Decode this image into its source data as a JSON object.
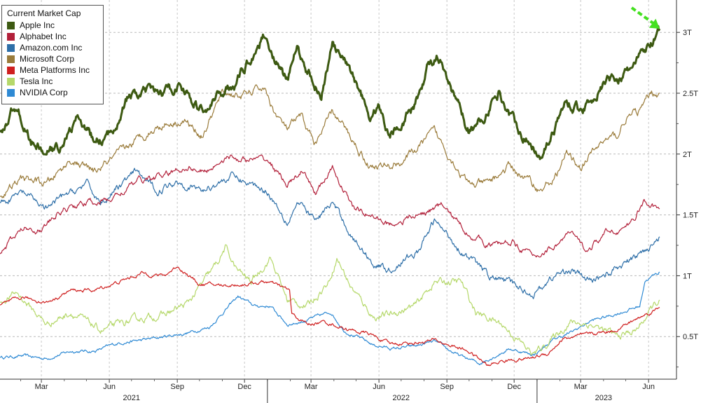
{
  "chart_data": {
    "type": "line",
    "title": "",
    "xlabel": "",
    "ylabel": "",
    "y_unit": "USD trillions",
    "x_range": [
      "2021-01-04",
      "2023-06-16"
    ],
    "ylim": [
      0.15,
      3.22
    ],
    "y_axis_side": "right",
    "y_ticks": [
      {
        "value": 0.5,
        "label": "0.5T"
      },
      {
        "value": 1.0,
        "label": "1T"
      },
      {
        "value": 1.5,
        "label": "1.5T"
      },
      {
        "value": 2.0,
        "label": "2T"
      },
      {
        "value": 2.5,
        "label": "2.5T"
      },
      {
        "value": 3.0,
        "label": "3T"
      }
    ],
    "month_ticks": [
      {
        "date": "2021-03-01",
        "label": "Mar"
      },
      {
        "date": "2021-06-01",
        "label": "Jun"
      },
      {
        "date": "2021-09-01",
        "label": "Sep"
      },
      {
        "date": "2021-12-01",
        "label": "Dec"
      },
      {
        "date": "2022-03-01",
        "label": "Mar"
      },
      {
        "date": "2022-06-01",
        "label": "Jun"
      },
      {
        "date": "2022-09-01",
        "label": "Sep"
      },
      {
        "date": "2022-12-01",
        "label": "Dec"
      },
      {
        "date": "2023-03-01",
        "label": "Mar"
      },
      {
        "date": "2023-06-01",
        "label": "Jun"
      }
    ],
    "year_ticks": [
      {
        "date": "2021-07-01",
        "label": "2021"
      },
      {
        "date": "2022-07-01",
        "label": "2022"
      },
      {
        "date": "2023-04-01",
        "label": "2023"
      }
    ],
    "year_dividers": [
      "2022-01-01",
      "2023-01-01"
    ],
    "grid": "dashed horizontal at y ticks, dashed vertical at quarter starts",
    "legend": {
      "title": "Current Market Cap",
      "position": "top-left"
    },
    "annotation": {
      "type": "arrow",
      "color": "#44e020",
      "points_to": {
        "series": "Apple Inc",
        "date": "2023-06-16",
        "value": 3.03
      }
    },
    "series": [
      {
        "name": "Apple Inc",
        "color": "#3d5a12",
        "points": [
          [
            "2021-01-04",
            2.18
          ],
          [
            "2021-01-26",
            2.4
          ],
          [
            "2021-02-15",
            2.1
          ],
          [
            "2021-03-08",
            2.0
          ],
          [
            "2021-03-25",
            2.05
          ],
          [
            "2021-04-20",
            2.3
          ],
          [
            "2021-05-12",
            2.1
          ],
          [
            "2021-06-01",
            2.15
          ],
          [
            "2021-06-25",
            2.45
          ],
          [
            "2021-07-20",
            2.5
          ],
          [
            "2021-08-15",
            2.5
          ],
          [
            "2021-09-05",
            2.58
          ],
          [
            "2021-09-25",
            2.4
          ],
          [
            "2021-10-10",
            2.35
          ],
          [
            "2021-10-30",
            2.5
          ],
          [
            "2021-11-20",
            2.6
          ],
          [
            "2021-12-05",
            2.75
          ],
          [
            "2021-12-28",
            2.98
          ],
          [
            "2022-01-10",
            2.8
          ],
          [
            "2022-01-27",
            2.6
          ],
          [
            "2022-02-10",
            2.85
          ],
          [
            "2022-02-28",
            2.65
          ],
          [
            "2022-03-15",
            2.5
          ],
          [
            "2022-03-30",
            2.9
          ],
          [
            "2022-04-15",
            2.75
          ],
          [
            "2022-05-05",
            2.55
          ],
          [
            "2022-05-20",
            2.3
          ],
          [
            "2022-06-01",
            2.4
          ],
          [
            "2022-06-15",
            2.15
          ],
          [
            "2022-07-05",
            2.3
          ],
          [
            "2022-07-20",
            2.4
          ],
          [
            "2022-08-05",
            2.7
          ],
          [
            "2022-08-18",
            2.8
          ],
          [
            "2022-09-05",
            2.55
          ],
          [
            "2022-09-30",
            2.2
          ],
          [
            "2022-10-20",
            2.3
          ],
          [
            "2022-11-10",
            2.5
          ],
          [
            "2022-11-28",
            2.3
          ],
          [
            "2022-12-20",
            2.1
          ],
          [
            "2023-01-05",
            2.0
          ],
          [
            "2023-01-25",
            2.2
          ],
          [
            "2023-02-10",
            2.45
          ],
          [
            "2023-03-01",
            2.35
          ],
          [
            "2023-03-15",
            2.45
          ],
          [
            "2023-04-05",
            2.6
          ],
          [
            "2023-05-01",
            2.65
          ],
          [
            "2023-05-20",
            2.8
          ],
          [
            "2023-06-05",
            2.9
          ],
          [
            "2023-06-16",
            3.03
          ]
        ]
      },
      {
        "name": "Alphabet Inc",
        "color": "#b2203a",
        "points": [
          [
            "2021-01-04",
            1.18
          ],
          [
            "2021-02-05",
            1.4
          ],
          [
            "2021-03-01",
            1.38
          ],
          [
            "2021-04-01",
            1.55
          ],
          [
            "2021-04-30",
            1.6
          ],
          [
            "2021-06-01",
            1.62
          ],
          [
            "2021-07-10",
            1.78
          ],
          [
            "2021-08-15",
            1.82
          ],
          [
            "2021-09-15",
            1.9
          ],
          [
            "2021-10-10",
            1.85
          ],
          [
            "2021-11-05",
            1.98
          ],
          [
            "2021-12-01",
            1.95
          ],
          [
            "2022-01-01",
            1.95
          ],
          [
            "2022-01-28",
            1.75
          ],
          [
            "2022-02-15",
            1.85
          ],
          [
            "2022-03-08",
            1.68
          ],
          [
            "2022-03-30",
            1.88
          ],
          [
            "2022-04-28",
            1.55
          ],
          [
            "2022-05-20",
            1.5
          ],
          [
            "2022-06-15",
            1.42
          ],
          [
            "2022-07-25",
            1.5
          ],
          [
            "2022-08-25",
            1.58
          ],
          [
            "2022-09-30",
            1.35
          ],
          [
            "2022-10-30",
            1.25
          ],
          [
            "2022-11-30",
            1.28
          ],
          [
            "2022-12-28",
            1.15
          ],
          [
            "2023-01-25",
            1.25
          ],
          [
            "2023-02-15",
            1.35
          ],
          [
            "2023-03-10",
            1.2
          ],
          [
            "2023-04-05",
            1.35
          ],
          [
            "2023-05-05",
            1.4
          ],
          [
            "2023-05-25",
            1.6
          ],
          [
            "2023-06-16",
            1.55
          ]
        ]
      },
      {
        "name": "Amazon.com Inc",
        "color": "#2e6fa8",
        "points": [
          [
            "2021-01-04",
            1.6
          ],
          [
            "2021-02-05",
            1.68
          ],
          [
            "2021-03-08",
            1.55
          ],
          [
            "2021-04-01",
            1.65
          ],
          [
            "2021-05-01",
            1.75
          ],
          [
            "2021-05-20",
            1.6
          ],
          [
            "2021-07-07",
            1.85
          ],
          [
            "2021-08-05",
            1.7
          ],
          [
            "2021-09-01",
            1.78
          ],
          [
            "2021-10-05",
            1.7
          ],
          [
            "2021-11-15",
            1.82
          ],
          [
            "2021-12-10",
            1.75
          ],
          [
            "2022-01-01",
            1.7
          ],
          [
            "2022-01-28",
            1.45
          ],
          [
            "2022-02-10",
            1.6
          ],
          [
            "2022-03-08",
            1.45
          ],
          [
            "2022-03-30",
            1.6
          ],
          [
            "2022-04-28",
            1.3
          ],
          [
            "2022-05-25",
            1.1
          ],
          [
            "2022-06-15",
            1.05
          ],
          [
            "2022-07-25",
            1.2
          ],
          [
            "2022-08-15",
            1.45
          ],
          [
            "2022-09-30",
            1.15
          ],
          [
            "2022-10-28",
            1.0
          ],
          [
            "2022-11-20",
            0.95
          ],
          [
            "2022-12-28",
            0.85
          ],
          [
            "2023-01-25",
            1.0
          ],
          [
            "2023-02-15",
            1.05
          ],
          [
            "2023-03-15",
            0.95
          ],
          [
            "2023-04-15",
            1.05
          ],
          [
            "2023-05-15",
            1.15
          ],
          [
            "2023-06-16",
            1.32
          ]
        ]
      },
      {
        "name": "Microsoft Corp",
        "color": "#9a7b3a",
        "points": [
          [
            "2021-01-04",
            1.65
          ],
          [
            "2021-02-05",
            1.8
          ],
          [
            "2021-03-08",
            1.75
          ],
          [
            "2021-04-10",
            1.95
          ],
          [
            "2021-05-12",
            1.85
          ],
          [
            "2021-06-15",
            2.0
          ],
          [
            "2021-07-15",
            2.15
          ],
          [
            "2021-08-15",
            2.25
          ],
          [
            "2021-09-10",
            2.28
          ],
          [
            "2021-10-05",
            2.15
          ],
          [
            "2021-11-01",
            2.5
          ],
          [
            "2021-12-01",
            2.48
          ],
          [
            "2021-12-27",
            2.55
          ],
          [
            "2022-01-10",
            2.35
          ],
          [
            "2022-01-27",
            2.2
          ],
          [
            "2022-02-15",
            2.3
          ],
          [
            "2022-03-08",
            2.08
          ],
          [
            "2022-03-30",
            2.35
          ],
          [
            "2022-04-28",
            2.1
          ],
          [
            "2022-05-20",
            1.9
          ],
          [
            "2022-06-15",
            1.9
          ],
          [
            "2022-07-05",
            1.95
          ],
          [
            "2022-08-15",
            2.18
          ],
          [
            "2022-09-30",
            1.75
          ],
          [
            "2022-10-25",
            1.75
          ],
          [
            "2022-11-25",
            1.9
          ],
          [
            "2022-12-28",
            1.75
          ],
          [
            "2023-01-05",
            1.7
          ],
          [
            "2023-01-25",
            1.8
          ],
          [
            "2023-02-10",
            2.0
          ],
          [
            "2023-03-01",
            1.9
          ],
          [
            "2023-03-30",
            2.1
          ],
          [
            "2023-04-20",
            2.15
          ],
          [
            "2023-05-01",
            2.3
          ],
          [
            "2023-05-20",
            2.35
          ],
          [
            "2023-06-05",
            2.5
          ],
          [
            "2023-06-16",
            2.5
          ]
        ]
      },
      {
        "name": "Meta Platforms Inc",
        "color": "#cf1f1f",
        "points": [
          [
            "2021-01-04",
            0.76
          ],
          [
            "2021-02-05",
            0.82
          ],
          [
            "2021-03-08",
            0.78
          ],
          [
            "2021-04-10",
            0.88
          ],
          [
            "2021-05-12",
            0.88
          ],
          [
            "2021-06-15",
            0.95
          ],
          [
            "2021-07-15",
            1.02
          ],
          [
            "2021-08-15",
            1.0
          ],
          [
            "2021-09-01",
            1.08
          ],
          [
            "2021-10-01",
            0.93
          ],
          [
            "2021-11-01",
            0.92
          ],
          [
            "2021-12-01",
            0.93
          ],
          [
            "2022-01-01",
            0.95
          ],
          [
            "2022-01-31",
            0.88
          ],
          [
            "2022-02-03",
            0.68
          ],
          [
            "2022-02-25",
            0.6
          ],
          [
            "2022-03-20",
            0.62
          ],
          [
            "2022-04-25",
            0.55
          ],
          [
            "2022-05-20",
            0.52
          ],
          [
            "2022-06-15",
            0.44
          ],
          [
            "2022-07-20",
            0.45
          ],
          [
            "2022-08-15",
            0.47
          ],
          [
            "2022-09-30",
            0.38
          ],
          [
            "2022-10-27",
            0.26
          ],
          [
            "2022-11-15",
            0.3
          ],
          [
            "2022-12-20",
            0.32
          ],
          [
            "2023-01-15",
            0.36
          ],
          [
            "2023-02-05",
            0.48
          ],
          [
            "2023-03-15",
            0.52
          ],
          [
            "2023-04-15",
            0.55
          ],
          [
            "2023-05-15",
            0.64
          ],
          [
            "2023-06-16",
            0.74
          ]
        ]
      },
      {
        "name": "Tesla Inc",
        "color": "#b5d86a",
        "points": [
          [
            "2021-01-04",
            0.78
          ],
          [
            "2021-01-27",
            0.86
          ],
          [
            "2021-03-08",
            0.6
          ],
          [
            "2021-04-10",
            0.7
          ],
          [
            "2021-05-20",
            0.55
          ],
          [
            "2021-06-15",
            0.6
          ],
          [
            "2021-07-15",
            0.65
          ],
          [
            "2021-08-15",
            0.68
          ],
          [
            "2021-09-15",
            0.77
          ],
          [
            "2021-10-25",
            1.1
          ],
          [
            "2021-11-05",
            1.23
          ],
          [
            "2021-11-20",
            1.05
          ],
          [
            "2021-12-10",
            0.95
          ],
          [
            "2022-01-05",
            1.15
          ],
          [
            "2022-01-28",
            0.8
          ],
          [
            "2022-02-24",
            0.75
          ],
          [
            "2022-03-25",
            0.95
          ],
          [
            "2022-04-05",
            1.15
          ],
          [
            "2022-04-25",
            0.9
          ],
          [
            "2022-05-25",
            0.66
          ],
          [
            "2022-06-15",
            0.68
          ],
          [
            "2022-07-20",
            0.75
          ],
          [
            "2022-08-15",
            0.95
          ],
          [
            "2022-09-20",
            0.95
          ],
          [
            "2022-10-10",
            0.7
          ],
          [
            "2022-11-15",
            0.6
          ],
          [
            "2022-12-27",
            0.35
          ],
          [
            "2023-01-25",
            0.5
          ],
          [
            "2023-02-15",
            0.62
          ],
          [
            "2023-03-15",
            0.6
          ],
          [
            "2023-04-20",
            0.5
          ],
          [
            "2023-05-15",
            0.55
          ],
          [
            "2023-06-08",
            0.75
          ],
          [
            "2023-06-16",
            0.8
          ]
        ]
      },
      {
        "name": "NVIDIA Corp",
        "color": "#2f8ad4",
        "points": [
          [
            "2021-01-04",
            0.33
          ],
          [
            "2021-02-05",
            0.34
          ],
          [
            "2021-03-08",
            0.32
          ],
          [
            "2021-04-10",
            0.38
          ],
          [
            "2021-05-12",
            0.38
          ],
          [
            "2021-06-15",
            0.45
          ],
          [
            "2021-07-15",
            0.47
          ],
          [
            "2021-08-15",
            0.5
          ],
          [
            "2021-09-15",
            0.53
          ],
          [
            "2021-10-15",
            0.58
          ],
          [
            "2021-11-22",
            0.83
          ],
          [
            "2021-12-15",
            0.75
          ],
          [
            "2022-01-05",
            0.75
          ],
          [
            "2022-01-28",
            0.6
          ],
          [
            "2022-02-15",
            0.62
          ],
          [
            "2022-03-28",
            0.7
          ],
          [
            "2022-04-15",
            0.55
          ],
          [
            "2022-05-25",
            0.43
          ],
          [
            "2022-06-20",
            0.4
          ],
          [
            "2022-07-20",
            0.42
          ],
          [
            "2022-08-15",
            0.46
          ],
          [
            "2022-09-15",
            0.35
          ],
          [
            "2022-10-15",
            0.28
          ],
          [
            "2022-11-25",
            0.4
          ],
          [
            "2022-12-28",
            0.35
          ],
          [
            "2023-01-25",
            0.48
          ],
          [
            "2023-02-15",
            0.53
          ],
          [
            "2023-03-15",
            0.63
          ],
          [
            "2023-04-15",
            0.68
          ],
          [
            "2023-05-20",
            0.75
          ],
          [
            "2023-05-27",
            0.96
          ],
          [
            "2023-06-16",
            1.03
          ]
        ]
      }
    ]
  }
}
